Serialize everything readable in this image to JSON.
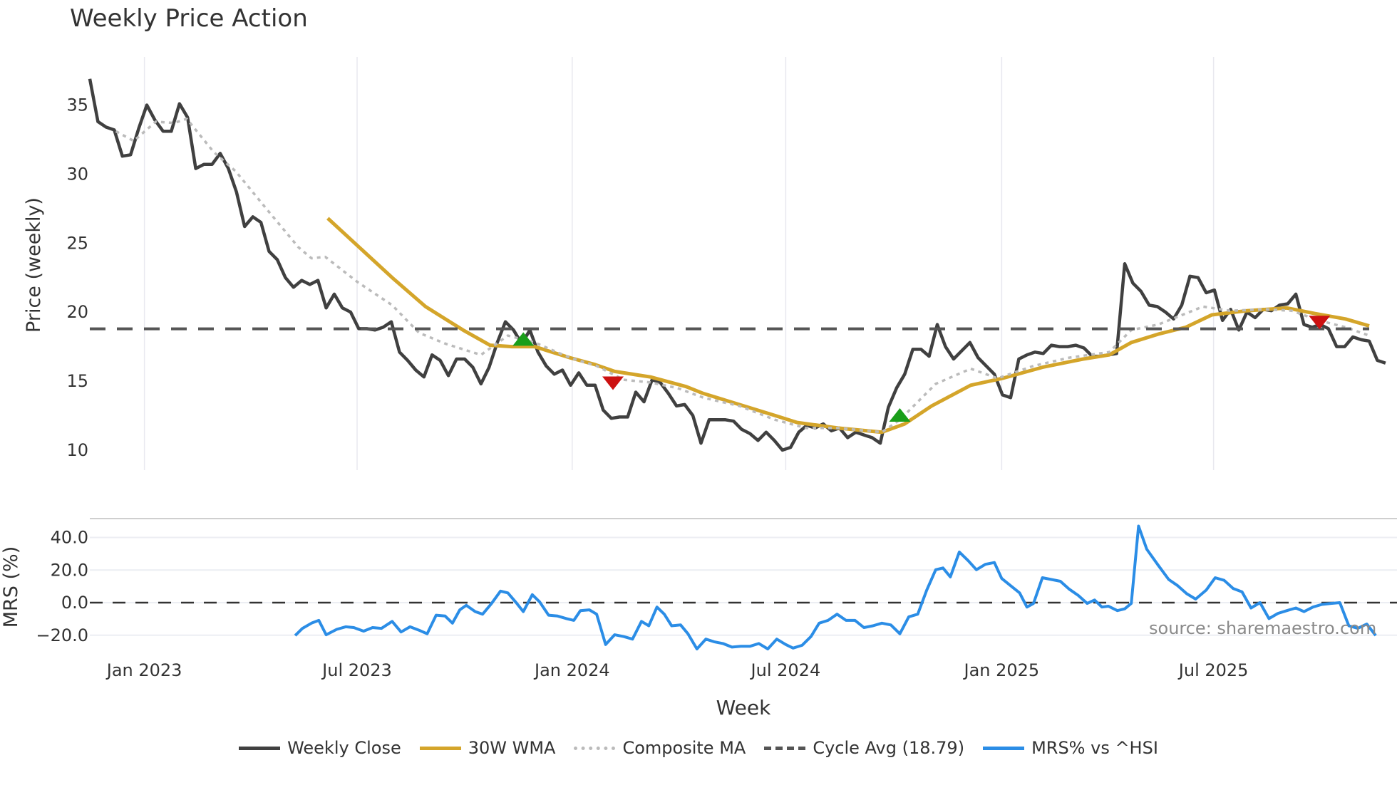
{
  "chart_data": {
    "type": "line",
    "title": "Weekly Price Action",
    "xlabel": "Week",
    "panels": [
      {
        "name": "price",
        "ylabel": "Price (weekly)",
        "ylim": [
          8.5,
          37.5
        ],
        "yticks": [
          10,
          15,
          20,
          25,
          30,
          35
        ],
        "grid": "vertical"
      },
      {
        "name": "mrs",
        "ylabel": "MRS (%)",
        "ylim": [
          -26,
          52
        ],
        "yticks": [
          "40.0",
          "20.0",
          "0.0",
          "−20.0"
        ],
        "grid": "horizontal"
      }
    ],
    "x_ticks": [
      "Jan 2023",
      "Jul 2023",
      "Jan 2024",
      "Jul 2024",
      "Jan 2025",
      "Jul 2025"
    ],
    "x_tick_week_index": [
      6.7,
      32.8,
      59.2,
      85.4,
      111.9,
      137.9
    ],
    "num_weeks": 158,
    "cycle_avg": 18.79,
    "series": [
      {
        "name": "Weekly Close",
        "color": "#404040",
        "start_index": 0,
        "values": [
          36.9,
          33.8,
          33.4,
          33.2,
          31.3,
          31.4,
          33.3,
          35.0,
          33.9,
          33.1,
          33.1,
          35.1,
          34.1,
          30.4,
          30.7,
          30.7,
          31.5,
          30.4,
          28.7,
          26.2,
          26.9,
          26.5,
          24.4,
          23.8,
          22.5,
          21.8,
          22.3,
          22.0,
          22.3,
          20.3,
          21.3,
          20.3,
          20.0,
          18.8,
          18.8,
          18.7,
          18.9,
          19.3,
          17.1,
          16.5,
          15.8,
          15.3,
          16.9,
          16.5,
          15.4,
          16.6,
          16.6,
          16.0,
          14.8,
          16.0,
          17.8,
          19.3,
          18.7,
          17.7,
          18.7,
          17.1,
          16.1,
          15.5,
          15.8,
          14.7,
          15.6,
          14.7,
          14.7,
          12.9,
          12.3,
          12.4,
          12.4,
          14.2,
          13.5,
          15.1,
          14.9,
          14.1,
          13.2,
          13.3,
          12.5,
          10.5,
          12.2,
          12.2,
          12.2,
          12.1,
          11.5,
          11.2,
          10.7,
          11.3,
          10.7,
          10.0,
          10.2,
          11.3,
          11.8,
          11.6,
          11.9,
          11.4,
          11.6,
          10.9,
          11.3,
          11.1,
          10.9,
          10.5,
          13.1,
          14.5,
          15.5,
          17.3,
          17.3,
          16.8,
          19.1,
          17.5,
          16.6,
          17.2,
          17.8,
          16.7,
          16.1,
          15.5,
          14.0,
          13.8,
          16.6,
          16.9,
          17.1,
          17.0,
          17.6,
          17.5,
          17.5,
          17.6,
          17.4,
          16.8,
          16.8,
          16.9,
          17.0,
          23.5,
          22.1,
          21.5,
          20.5,
          20.4,
          20.0,
          19.5,
          20.5,
          22.6,
          22.5,
          21.4,
          21.6,
          19.4,
          20.2,
          18.7,
          20.0,
          19.6,
          20.2,
          20.1,
          20.5,
          20.6,
          21.3,
          19.1,
          18.9,
          19.1,
          18.8,
          17.5,
          17.5,
          18.2,
          18.0,
          17.9,
          16.5,
          16.3
        ]
      },
      {
        "name": "30W WMA",
        "color": "#d4a52a",
        "points": [
          [
            29.2,
            26.8
          ],
          [
            37.1,
            22.5
          ],
          [
            41.2,
            20.4
          ],
          [
            45.8,
            18.7
          ],
          [
            49.1,
            17.6
          ],
          [
            51.8,
            17.5
          ],
          [
            54.6,
            17.5
          ],
          [
            58.9,
            16.7
          ],
          [
            62.0,
            16.2
          ],
          [
            64.4,
            15.7
          ],
          [
            68.8,
            15.3
          ],
          [
            73.2,
            14.6
          ],
          [
            75.3,
            14.1
          ],
          [
            79.7,
            13.3
          ],
          [
            84.1,
            12.5
          ],
          [
            86.8,
            12.0
          ],
          [
            91.8,
            11.6
          ],
          [
            97.2,
            11.3
          ],
          [
            100.0,
            11.9
          ],
          [
            103.3,
            13.2
          ],
          [
            108.1,
            14.7
          ],
          [
            112.0,
            15.2
          ],
          [
            116.9,
            16.0
          ],
          [
            121.9,
            16.6
          ],
          [
            125.1,
            16.9
          ],
          [
            127.8,
            17.8
          ],
          [
            131.1,
            18.4
          ],
          [
            134.5,
            18.9
          ],
          [
            137.7,
            19.8
          ],
          [
            142.0,
            20.1
          ],
          [
            146.9,
            20.3
          ],
          [
            150.3,
            19.9
          ],
          [
            154.1,
            19.5
          ],
          [
            157.0,
            19.0
          ]
        ]
      },
      {
        "name": "Composite MA",
        "color": "#bbbbbb",
        "points": [
          [
            3.2,
            33.1
          ],
          [
            5.4,
            32.4
          ],
          [
            8.1,
            33.8
          ],
          [
            10.3,
            33.7
          ],
          [
            11.9,
            34.0
          ],
          [
            15.2,
            31.6
          ],
          [
            17.9,
            30.2
          ],
          [
            21.8,
            27.4
          ],
          [
            25.6,
            24.7
          ],
          [
            27.2,
            23.9
          ],
          [
            28.9,
            24.0
          ],
          [
            32.8,
            22.2
          ],
          [
            37.1,
            20.5
          ],
          [
            40.4,
            18.5
          ],
          [
            43.7,
            17.7
          ],
          [
            48.0,
            16.9
          ],
          [
            51.3,
            18.3
          ],
          [
            54.6,
            17.8
          ],
          [
            58.9,
            16.7
          ],
          [
            62.2,
            16.1
          ],
          [
            65.5,
            15.1
          ],
          [
            68.8,
            14.9
          ],
          [
            72.1,
            14.5
          ],
          [
            75.3,
            13.8
          ],
          [
            79.7,
            13.2
          ],
          [
            84.1,
            12.2
          ],
          [
            87.9,
            11.6
          ],
          [
            91.7,
            11.6
          ],
          [
            97.2,
            11.3
          ],
          [
            99.4,
            12.2
          ],
          [
            103.8,
            14.8
          ],
          [
            108.1,
            15.9
          ],
          [
            111.4,
            15.2
          ],
          [
            115.8,
            16.1
          ],
          [
            120.2,
            16.7
          ],
          [
            125.1,
            17.1
          ],
          [
            127.8,
            18.7
          ],
          [
            131.1,
            19.1
          ],
          [
            134.5,
            19.9
          ],
          [
            136.6,
            20.4
          ],
          [
            139.9,
            20.1
          ],
          [
            144.3,
            20.2
          ],
          [
            147.5,
            20.1
          ],
          [
            150.8,
            19.4
          ],
          [
            154.1,
            18.9
          ],
          [
            157.0,
            18.3
          ]
        ]
      },
      {
        "name": "Cycle Avg (18.79)",
        "color": "#555555",
        "value": 18.79
      },
      {
        "name": "MRS% vs ^HSI",
        "color": "#2b8de6",
        "panel": "mrs",
        "points": [
          [
            25.2,
            -20.2
          ],
          [
            26.1,
            -15.8
          ],
          [
            27.2,
            -12.6
          ],
          [
            28.1,
            -10.9
          ],
          [
            29.0,
            -19.7
          ],
          [
            30.3,
            -16.4
          ],
          [
            31.4,
            -14.8
          ],
          [
            32.4,
            -15.3
          ],
          [
            33.6,
            -17.5
          ],
          [
            34.7,
            -15.3
          ],
          [
            35.8,
            -15.8
          ],
          [
            37.1,
            -11.5
          ],
          [
            38.2,
            -18.0
          ],
          [
            39.3,
            -14.8
          ],
          [
            40.4,
            -16.9
          ],
          [
            41.4,
            -19.1
          ],
          [
            42.5,
            -7.7
          ],
          [
            43.6,
            -8.2
          ],
          [
            44.5,
            -12.6
          ],
          [
            45.4,
            -4.4
          ],
          [
            46.2,
            -1.6
          ],
          [
            47.3,
            -5.5
          ],
          [
            48.2,
            -7.1
          ],
          [
            49.3,
            -0.5
          ],
          [
            50.4,
            7.1
          ],
          [
            51.3,
            6.0
          ],
          [
            52.4,
            -0.5
          ],
          [
            53.2,
            -5.5
          ],
          [
            54.3,
            4.9
          ],
          [
            55.2,
            0.5
          ],
          [
            56.3,
            -7.7
          ],
          [
            57.4,
            -8.2
          ],
          [
            58.5,
            -9.8
          ],
          [
            59.4,
            -10.9
          ],
          [
            60.2,
            -4.9
          ],
          [
            61.3,
            -4.4
          ],
          [
            62.2,
            -7.1
          ],
          [
            63.3,
            -25.7
          ],
          [
            64.4,
            -19.7
          ],
          [
            65.5,
            -20.8
          ],
          [
            66.6,
            -22.4
          ],
          [
            67.7,
            -11.5
          ],
          [
            68.6,
            -14.2
          ],
          [
            69.6,
            -2.7
          ],
          [
            70.5,
            -7.1
          ],
          [
            71.4,
            -14.2
          ],
          [
            72.5,
            -13.7
          ],
          [
            73.4,
            -19.1
          ],
          [
            74.5,
            -28.4
          ],
          [
            75.6,
            -22.4
          ],
          [
            76.6,
            -24.0
          ],
          [
            77.7,
            -25.1
          ],
          [
            78.8,
            -27.3
          ],
          [
            79.9,
            -26.8
          ],
          [
            81.0,
            -26.8
          ],
          [
            82.1,
            -25.1
          ],
          [
            83.2,
            -28.4
          ],
          [
            84.3,
            -22.4
          ],
          [
            85.4,
            -25.7
          ],
          [
            86.3,
            -27.9
          ],
          [
            87.4,
            -26.2
          ],
          [
            88.5,
            -20.8
          ],
          [
            89.5,
            -12.6
          ],
          [
            90.6,
            -10.9
          ],
          [
            91.7,
            -7.1
          ],
          [
            92.8,
            -10.9
          ],
          [
            93.9,
            -10.9
          ],
          [
            95.0,
            -15.3
          ],
          [
            96.1,
            -14.2
          ],
          [
            97.2,
            -12.6
          ],
          [
            98.3,
            -13.7
          ],
          [
            99.4,
            -19.1
          ],
          [
            100.5,
            -8.7
          ],
          [
            101.6,
            -7.1
          ],
          [
            102.7,
            7.7
          ],
          [
            103.8,
            20.2
          ],
          [
            104.7,
            21.3
          ],
          [
            105.6,
            15.8
          ],
          [
            106.7,
            31.1
          ],
          [
            107.8,
            25.7
          ],
          [
            108.8,
            20.2
          ],
          [
            109.9,
            23.5
          ],
          [
            111.0,
            24.6
          ],
          [
            111.9,
            14.8
          ],
          [
            113.0,
            10.4
          ],
          [
            114.1,
            6.0
          ],
          [
            115.0,
            -2.7
          ],
          [
            115.8,
            -0.5
          ],
          [
            116.9,
            15.3
          ],
          [
            118.0,
            14.2
          ],
          [
            119.1,
            13.1
          ],
          [
            120.2,
            8.2
          ],
          [
            121.3,
            4.4
          ],
          [
            122.4,
            -0.5
          ],
          [
            123.3,
            1.6
          ],
          [
            124.2,
            -2.7
          ],
          [
            125.0,
            -2.2
          ],
          [
            126.1,
            -4.9
          ],
          [
            127.0,
            -3.8
          ],
          [
            127.8,
            -0.5
          ],
          [
            128.7,
            47.0
          ],
          [
            129.7,
            32.8
          ],
          [
            131.1,
            23.0
          ],
          [
            132.4,
            14.2
          ],
          [
            133.5,
            10.4
          ],
          [
            134.6,
            5.5
          ],
          [
            135.7,
            2.2
          ],
          [
            137.0,
            7.7
          ],
          [
            138.1,
            15.3
          ],
          [
            139.2,
            13.7
          ],
          [
            140.3,
            8.7
          ],
          [
            141.4,
            6.6
          ],
          [
            142.5,
            -3.3
          ],
          [
            143.6,
            0.0
          ],
          [
            144.7,
            -9.8
          ],
          [
            145.8,
            -6.6
          ],
          [
            146.9,
            -4.9
          ],
          [
            148.0,
            -3.3
          ],
          [
            149.0,
            -5.5
          ],
          [
            150.1,
            -2.7
          ],
          [
            151.2,
            -1.1
          ],
          [
            152.3,
            -0.5
          ],
          [
            153.4,
            0.0
          ],
          [
            154.5,
            -14.2
          ],
          [
            155.6,
            -15.8
          ],
          [
            156.7,
            -13.1
          ],
          [
            157.8,
            -20.2
          ]
        ]
      }
    ],
    "signals": [
      {
        "type": "buy",
        "color": "#1a9e1a",
        "index": 53.2,
        "value": 18.0
      },
      {
        "type": "sell",
        "color": "#cc1111",
        "index": 64.2,
        "value": 14.9
      },
      {
        "type": "buy",
        "color": "#1a9e1a",
        "index": 99.4,
        "value": 12.5
      },
      {
        "type": "sell",
        "color": "#cc1111",
        "index": 150.9,
        "value": 19.3
      }
    ],
    "annotations": [
      "source: sharemaestro.com"
    ],
    "legend_position": "bottom"
  },
  "labels": {
    "title": "Weekly Price Action",
    "price_ylabel": "Price (weekly)",
    "mrs_ylabel": "MRS (%)",
    "xlabel": "Week",
    "watermark": "source: sharemaestro.com"
  },
  "legend": [
    {
      "label": "Weekly Close",
      "color": "#404040",
      "style": "solid"
    },
    {
      "label": "30W WMA",
      "color": "#d4a52a",
      "style": "solid"
    },
    {
      "label": "Composite MA",
      "color": "#bbbbbb",
      "style": "dotted"
    },
    {
      "label": "Cycle Avg (18.79)",
      "color": "#555555",
      "style": "dashed"
    },
    {
      "label": "MRS% vs ^HSI",
      "color": "#2b8de6",
      "style": "solid"
    }
  ]
}
